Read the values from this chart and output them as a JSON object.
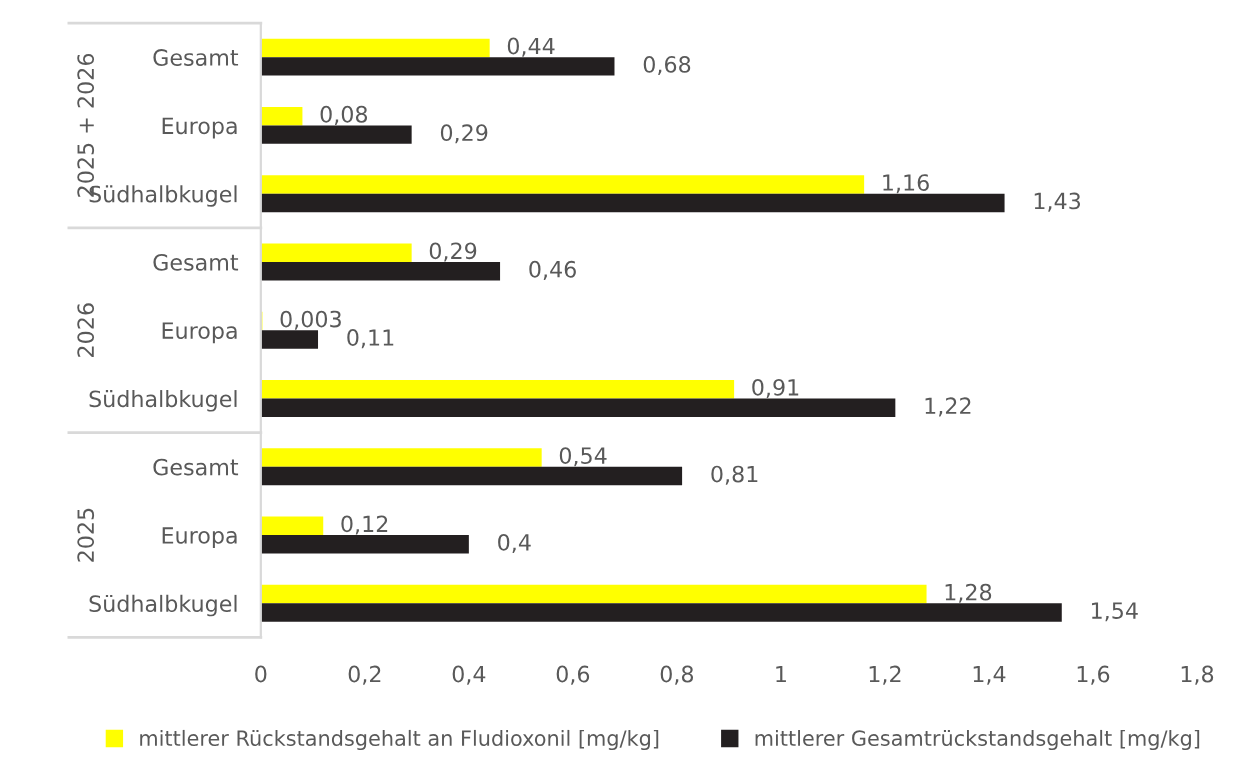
{
  "chart_data": {
    "type": "bar",
    "orientation": "horizontal",
    "categories": [
      "Gesamt",
      "Europa",
      "Südhalbkugel",
      "Gesamt",
      "Europa",
      "Südhalbkugel",
      "Gesamt",
      "Europa",
      "Südhalbkugel"
    ],
    "series": [
      {
        "name": "mittlerer Rückstandsgehalt an Fludioxonil [mg/kg]",
        "color": "#ffff00",
        "values": [
          0.44,
          0.08,
          1.16,
          0.29,
          0.003,
          0.91,
          0.54,
          0.12,
          1.28
        ],
        "value_labels": [
          "0,44",
          "0,08",
          "1,16",
          "0,29",
          "0,003",
          "0,91",
          "0,54",
          "0,12",
          "1,28"
        ]
      },
      {
        "name": "mittlerer Gesamtrückstandsgehalt [mg/kg]",
        "color": "#231f20",
        "values": [
          0.68,
          0.29,
          1.43,
          0.46,
          0.11,
          1.22,
          0.81,
          0.4,
          1.54
        ],
        "value_labels": [
          "0,68",
          "0,29",
          "1,43",
          "0,46",
          "0,11",
          "1,22",
          "0,81",
          "0,4",
          "1,54"
        ]
      }
    ],
    "xlim": [
      0,
      1.8
    ],
    "xticks": [
      0,
      {
        "value": 0.2,
        "label": "0,2"
      },
      {
        "value": 0.4,
        "label": "0,4"
      },
      {
        "value": 0.6,
        "label": "0,6"
      },
      {
        "value": 0.8,
        "label": "0,8"
      },
      1,
      {
        "value": 1.2,
        "label": "1,2"
      },
      {
        "value": 1.4,
        "label": "1,4"
      },
      {
        "value": 1.6,
        "label": "1,6"
      },
      {
        "value": 1.8,
        "label": "1,8"
      }
    ],
    "annotations": [
      "2025 + 2026",
      "2026",
      "2025"
    ],
    "grid": false,
    "legend": "bottom"
  }
}
